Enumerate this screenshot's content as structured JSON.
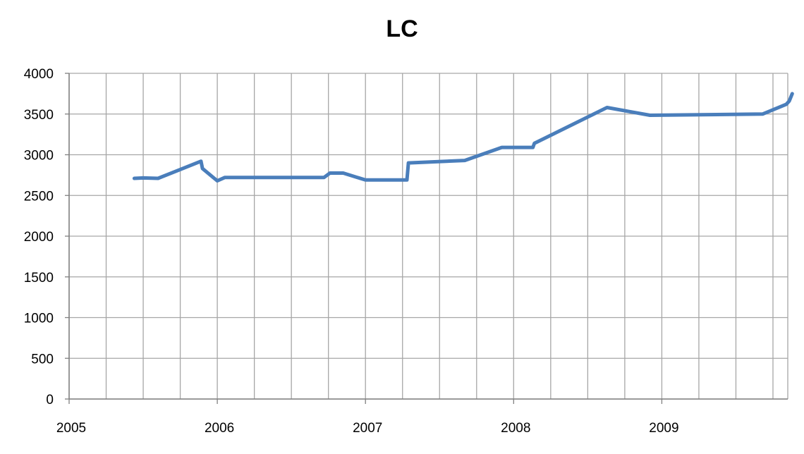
{
  "chart_data": {
    "type": "line",
    "title": "LC",
    "xlabel": "",
    "ylabel": "",
    "xlim": [
      2005,
      2009.85
    ],
    "ylim": [
      0,
      4000
    ],
    "y_ticks": [
      0,
      500,
      1000,
      1500,
      2000,
      2500,
      3000,
      3500,
      4000
    ],
    "x_ticks": [
      2005,
      2006,
      2007,
      2008,
      2009
    ],
    "x_minor_gridlines_per_year": 4,
    "grid": true,
    "legend": "none",
    "series": [
      {
        "color": "#4a7ebb",
        "points": [
          [
            2005.44,
            2710
          ],
          [
            2005.5,
            2715
          ],
          [
            2005.6,
            2710
          ],
          [
            2005.89,
            2920
          ],
          [
            2005.9,
            2830
          ],
          [
            2006.0,
            2680
          ],
          [
            2006.05,
            2720
          ],
          [
            2006.72,
            2720
          ],
          [
            2006.76,
            2775
          ],
          [
            2006.85,
            2775
          ],
          [
            2007.0,
            2690
          ],
          [
            2007.28,
            2690
          ],
          [
            2007.29,
            2900
          ],
          [
            2007.67,
            2930
          ],
          [
            2007.92,
            3090
          ],
          [
            2008.13,
            3090
          ],
          [
            2008.14,
            3140
          ],
          [
            2008.63,
            3580
          ],
          [
            2008.92,
            3485
          ],
          [
            2009.68,
            3500
          ],
          [
            2009.84,
            3620
          ],
          [
            2009.86,
            3660
          ],
          [
            2009.88,
            3750
          ]
        ]
      }
    ]
  }
}
